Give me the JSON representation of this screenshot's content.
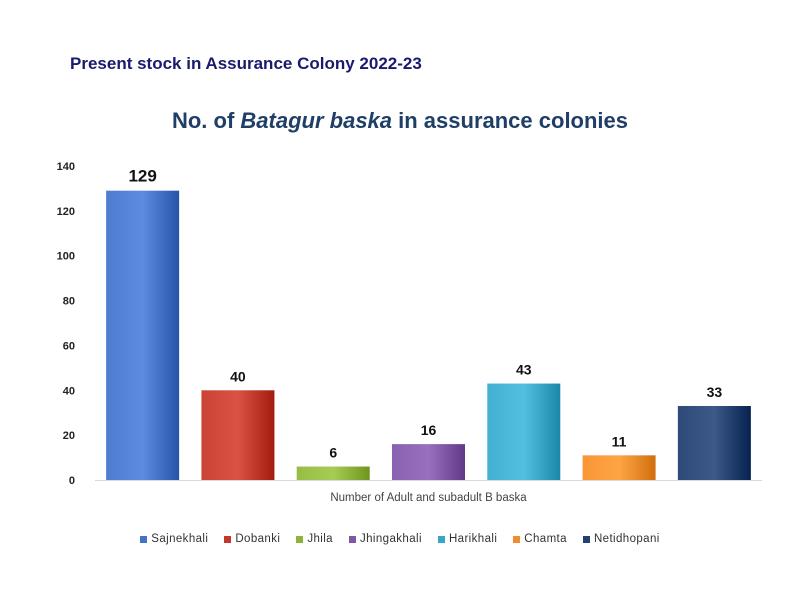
{
  "header": {
    "title": "Present stock in Assurance Colony 2022-23"
  },
  "chart_data": {
    "type": "bar",
    "title_prefix": "No. of ",
    "title_italic": "Batagur baska",
    "title_suffix": " in assurance colonies",
    "xlabel": "Number of Adult and subadult B baska",
    "ylabel": "",
    "ylim": [
      0,
      140
    ],
    "yticks": [
      0,
      20,
      40,
      60,
      80,
      100,
      120,
      140
    ],
    "grid": false,
    "legend": "bottom",
    "categories": [
      "Sajnekhali",
      "Dobanki",
      "Jhila",
      "Jhingakhali",
      "Harikhali",
      "Chamta",
      "Netidhopani"
    ],
    "values": [
      129,
      40,
      6,
      16,
      43,
      11,
      33
    ],
    "colors": [
      "#4472c4",
      "#c0392b",
      "#8db33a",
      "#7e57a6",
      "#3aa6c7",
      "#ef8c2b",
      "#23406e"
    ]
  }
}
